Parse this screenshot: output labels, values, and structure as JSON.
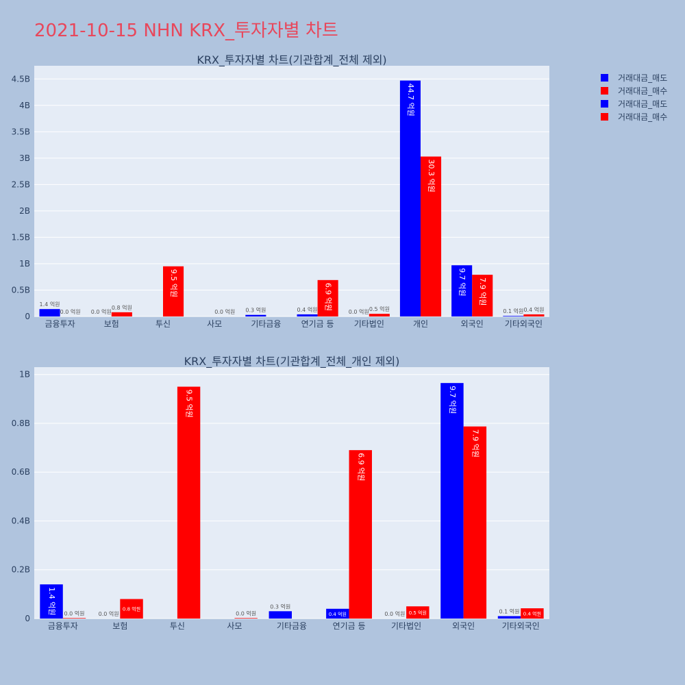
{
  "page": {
    "title": "2021-10-15 NHN KRX_투자자별 차트",
    "background": "#b0c4de",
    "plot_background": "#e5ecf6",
    "title_color": "#e8475b"
  },
  "legend": {
    "placement": "top-right",
    "items": [
      {
        "label": "거래대금_매도",
        "color": "#0000ff"
      },
      {
        "label": "거래대금_매수",
        "color": "#ff0000"
      },
      {
        "label": "거래대금_매도",
        "color": "#0000ff"
      },
      {
        "label": "거래대금_매수",
        "color": "#ff0000"
      }
    ]
  },
  "chart_data": [
    {
      "type": "bar",
      "title": "KRX_투자자별 차트(기관합계_전체 제외)",
      "categories": [
        "금융투자",
        "보험",
        "투신",
        "사모",
        "기타금융",
        "연기금 등",
        "기타법인",
        "개인",
        "외국인",
        "기타외국인"
      ],
      "series": [
        {
          "name": "거래대금_매도",
          "color": "#0000ff",
          "values": [
            140000000,
            0,
            0,
            0,
            30000000,
            40000000,
            0,
            4470000000,
            970000000,
            10000000
          ],
          "labels": [
            "1.4 억원",
            "0.0 억원",
            "",
            "",
            "0.3 억원",
            "0.4 억원",
            "0.0 억원",
            "44.7 억원",
            "9.7 억원",
            "0.1 억원"
          ]
        },
        {
          "name": "거래대금_매수",
          "color": "#ff0000",
          "values": [
            0,
            80000000,
            950000000,
            0,
            0,
            690000000,
            50000000,
            3030000000,
            790000000,
            40000000
          ],
          "labels": [
            "0.0 억원",
            "0.8 억원",
            "9.5 억원",
            "0.0 억원",
            "",
            "6.9 억원",
            "0.5 억원",
            "30.3 억원",
            "7.9 억원",
            "0.4 억원"
          ]
        }
      ],
      "ylim": [
        0,
        4750000000
      ],
      "yticks": [
        0,
        500000000,
        1000000000,
        1500000000,
        2000000000,
        2500000000,
        3000000000,
        3500000000,
        4000000000,
        4500000000
      ],
      "yticklabels": [
        "0",
        "0.5B",
        "1B",
        "1.5B",
        "2B",
        "2.5B",
        "3B",
        "3.5B",
        "4B",
        "4.5B"
      ],
      "grid": true
    },
    {
      "type": "bar",
      "title": "KRX_투자자별 차트(기관합계_전체_개인 제외)",
      "categories": [
        "금융투자",
        "보험",
        "투신",
        "사모",
        "기타금융",
        "연기금 등",
        "기타법인",
        "외국인",
        "기타외국인"
      ],
      "series": [
        {
          "name": "거래대금_매도",
          "color": "#0000ff",
          "values": [
            140000000,
            0,
            0,
            0,
            30000000,
            40000000,
            0,
            965000000,
            10000000
          ],
          "labels": [
            "1.4 억원",
            "0.0 억원",
            "",
            "",
            "0.3 억원",
            "0.4 억원",
            "0.0 억원",
            "9.7 억원",
            "0.1 억원"
          ]
        },
        {
          "name": "거래대금_매수",
          "color": "#ff0000",
          "values": [
            2000000,
            80000000,
            950000000,
            2000000,
            0,
            690000000,
            50000000,
            787000000,
            42000000
          ],
          "labels": [
            "0.0 억원",
            "0.8 억원",
            "9.5 억원",
            "0.0 억원",
            "",
            "6.9 억원",
            "0.5 억원",
            "7.9 억원",
            "0.4 억원"
          ]
        }
      ],
      "ylim": [
        0,
        1030000000
      ],
      "yticks": [
        0,
        200000000,
        400000000,
        600000000,
        800000000,
        1000000000
      ],
      "yticklabels": [
        "0",
        "0.2B",
        "0.4B",
        "0.6B",
        "0.8B",
        "1B"
      ],
      "grid": true
    }
  ]
}
